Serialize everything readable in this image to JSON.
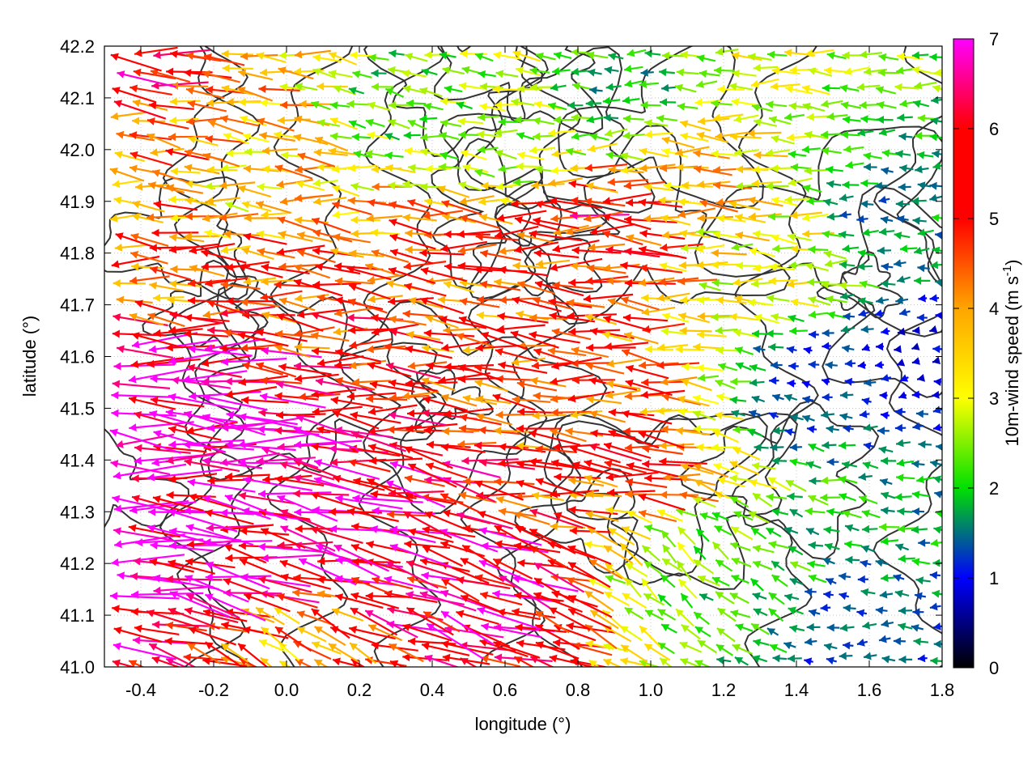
{
  "chart_data": {
    "type": "vector-field",
    "xlabel": "longitude (°)",
    "ylabel": "latitude (°)",
    "xlim": [
      -0.5,
      1.8
    ],
    "ylim": [
      41.0,
      42.2
    ],
    "xticks": [
      "-0.4",
      "-0.2",
      "0.0",
      "0.2",
      "0.4",
      "0.6",
      "0.8",
      "1.0",
      "1.2",
      "1.4",
      "1.6",
      "1.8"
    ],
    "xtick_values": [
      -0.4,
      -0.2,
      0.0,
      0.2,
      0.4,
      0.6,
      0.8,
      1.0,
      1.2,
      1.4,
      1.6,
      1.8
    ],
    "yticks": [
      "41.0",
      "41.1",
      "41.2",
      "41.3",
      "41.4",
      "41.5",
      "41.6",
      "41.7",
      "41.8",
      "41.9",
      "42.0",
      "42.1",
      "42.2"
    ],
    "ytick_values": [
      41.0,
      41.1,
      41.2,
      41.3,
      41.4,
      41.5,
      41.6,
      41.7,
      41.8,
      41.9,
      42.0,
      42.1,
      42.2
    ],
    "grid": true,
    "colorbar": {
      "label": "10m-wind speed (m s",
      "label_sup": "-1",
      "label_end": ")",
      "range": [
        0,
        7
      ],
      "ticks": [
        "0",
        "1",
        "2",
        "3",
        "4",
        "5",
        "6",
        "7"
      ],
      "tick_values": [
        0,
        1,
        2,
        3,
        4,
        5,
        6,
        7
      ],
      "colors": [
        "#000000",
        "#0000ff",
        "#00e000",
        "#ffff00",
        "#ffa500",
        "#ff0000",
        "#ff00ff"
      ]
    },
    "contour_color": "#333333",
    "vectors": [
      {
        "lon": -0.45,
        "lat": 42.15,
        "speed": 5.8,
        "dir_deg": 175
      },
      {
        "lon": -0.35,
        "lat": 42.05,
        "speed": 4.2,
        "dir_deg": 172
      },
      {
        "lon": -0.2,
        "lat": 41.95,
        "speed": 3.5,
        "dir_deg": 175
      },
      {
        "lon": -0.4,
        "lat": 41.75,
        "speed": 4.6,
        "dir_deg": 176
      },
      {
        "lon": -0.4,
        "lat": 41.55,
        "speed": 6.8,
        "dir_deg": 178
      },
      {
        "lon": -0.4,
        "lat": 41.3,
        "speed": 7.0,
        "dir_deg": 177
      },
      {
        "lon": -0.3,
        "lat": 41.45,
        "speed": 6.9,
        "dir_deg": 176
      },
      {
        "lon": -0.1,
        "lat": 41.25,
        "speed": 6.8,
        "dir_deg": 172
      },
      {
        "lon": 0.1,
        "lat": 41.3,
        "speed": 6.5,
        "dir_deg": 168
      },
      {
        "lon": 0.3,
        "lat": 41.2,
        "speed": 6.0,
        "dir_deg": 165
      },
      {
        "lon": 0.5,
        "lat": 41.15,
        "speed": 6.4,
        "dir_deg": 162
      },
      {
        "lon": 0.2,
        "lat": 41.6,
        "speed": 5.2,
        "dir_deg": 176
      },
      {
        "lon": 0.4,
        "lat": 41.7,
        "speed": 4.5,
        "dir_deg": 175
      },
      {
        "lon": 0.6,
        "lat": 41.8,
        "speed": 5.0,
        "dir_deg": 178
      },
      {
        "lon": 0.8,
        "lat": 41.85,
        "speed": 5.5,
        "dir_deg": 178
      },
      {
        "lon": 0.7,
        "lat": 41.5,
        "speed": 4.8,
        "dir_deg": 176
      },
      {
        "lon": 0.9,
        "lat": 41.4,
        "speed": 5.0,
        "dir_deg": 177
      },
      {
        "lon": 0.3,
        "lat": 42.1,
        "speed": 2.2,
        "dir_deg": 170
      },
      {
        "lon": 0.6,
        "lat": 42.0,
        "speed": 2.5,
        "dir_deg": 175
      },
      {
        "lon": 0.9,
        "lat": 42.1,
        "speed": 1.8,
        "dir_deg": 180
      },
      {
        "lon": 1.1,
        "lat": 41.95,
        "speed": 3.6,
        "dir_deg": 178
      },
      {
        "lon": 1.3,
        "lat": 41.8,
        "speed": 3.2,
        "dir_deg": 176
      },
      {
        "lon": 1.4,
        "lat": 41.55,
        "speed": 1.2,
        "dir_deg": 170
      },
      {
        "lon": 1.6,
        "lat": 41.9,
        "speed": 1.6,
        "dir_deg": 180
      },
      {
        "lon": 1.7,
        "lat": 41.6,
        "speed": 0.9,
        "dir_deg": 190
      },
      {
        "lon": 1.25,
        "lat": 41.15,
        "speed": 2.0,
        "dir_deg": 150
      },
      {
        "lon": 1.5,
        "lat": 41.05,
        "speed": 1.3,
        "dir_deg": 180
      },
      {
        "lon": 1.7,
        "lat": 41.02,
        "speed": 1.4,
        "dir_deg": 180
      },
      {
        "lon": 1.05,
        "lat": 41.2,
        "speed": 2.4,
        "dir_deg": 140
      },
      {
        "lon": 0.0,
        "lat": 41.05,
        "speed": 4.0,
        "dir_deg": 150
      }
    ]
  }
}
